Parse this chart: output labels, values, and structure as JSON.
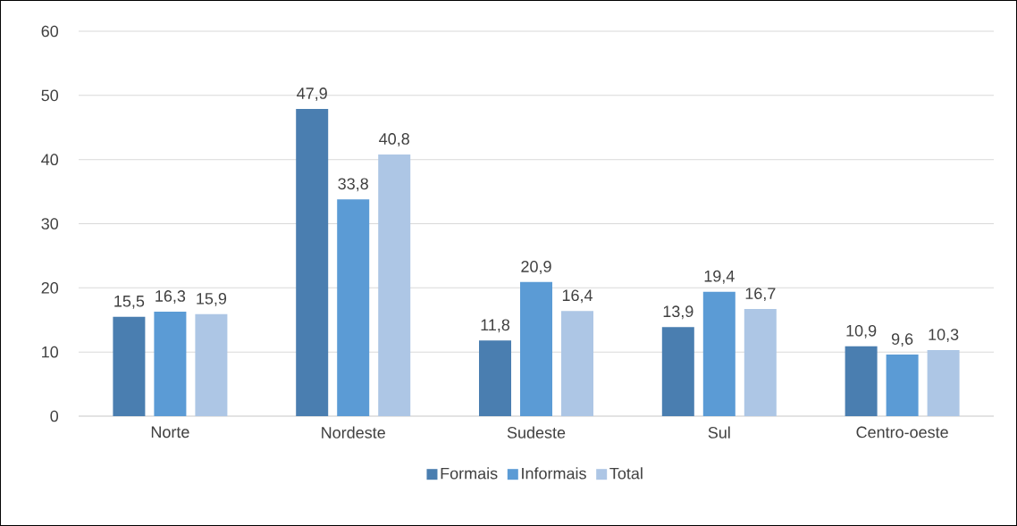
{
  "chart_data": {
    "type": "bar",
    "categories": [
      "Norte",
      "Nordeste",
      "Sudeste",
      "Sul",
      "Centro-oeste"
    ],
    "series": [
      {
        "name": "Formais",
        "color": "#4a7eb0",
        "values": [
          15.5,
          47.9,
          11.8,
          13.9,
          10.9
        ],
        "value_labels": [
          "15,5",
          "47,9",
          "11,8",
          "13,9",
          "10,9"
        ]
      },
      {
        "name": "Informais",
        "color": "#5b9bd5",
        "values": [
          16.3,
          33.8,
          20.9,
          19.4,
          9.6
        ],
        "value_labels": [
          "16,3",
          "33,8",
          "20,9",
          "19,4",
          "9,6"
        ]
      },
      {
        "name": "Total",
        "color": "#adc6e5",
        "values": [
          15.9,
          40.8,
          16.4,
          16.7,
          10.3
        ],
        "value_labels": [
          "15,9",
          "40,8",
          "16,4",
          "16,7",
          "10,3"
        ]
      }
    ],
    "ylim": [
      0,
      60
    ],
    "yticks": [
      0,
      10,
      20,
      30,
      40,
      50,
      60
    ],
    "grid": "y",
    "legend": "bottom"
  }
}
